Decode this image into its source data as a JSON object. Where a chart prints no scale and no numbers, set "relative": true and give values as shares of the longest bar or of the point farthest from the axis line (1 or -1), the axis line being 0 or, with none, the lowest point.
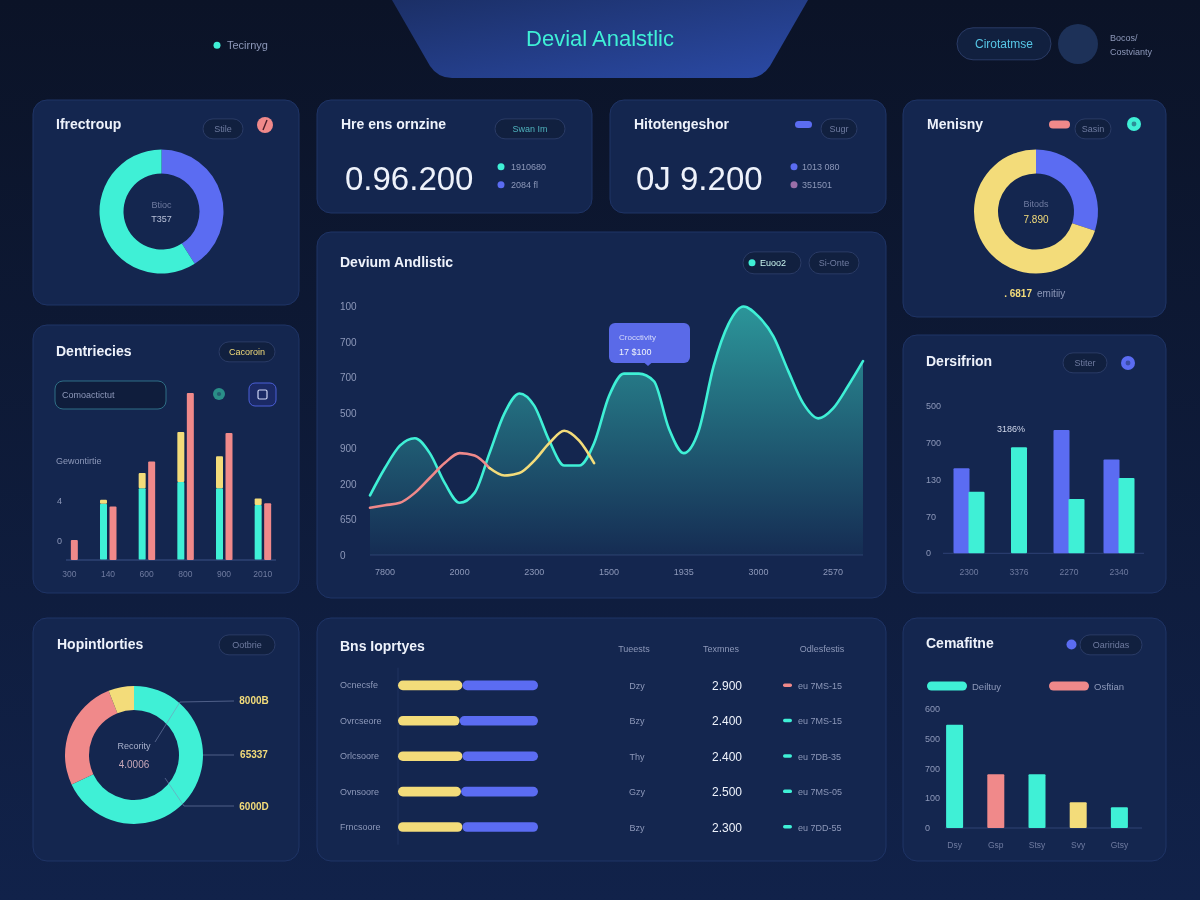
{
  "chart_data": [
    {
      "type": "other",
      "title": "Devial Analstlic",
      "annotations": [
        "Tecirnyg",
        "Cirotatmse",
        "Bocos/",
        "Costvianty"
      ]
    },
    {
      "type": "donut",
      "title": "Ifrectroup",
      "categories": [
        null,
        null
      ],
      "values": [
        41,
        59
      ],
      "colors": [
        "#5b6cf2",
        "#3ff0d6"
      ],
      "annotations": [
        "Stile",
        "Btioc",
        "T357"
      ]
    },
    {
      "type": "other",
      "title": "Hre ens ornzine",
      "annotations": [
        "Swan Im",
        "0.96.200",
        "1910680",
        "2084 fl"
      ]
    },
    {
      "type": "other",
      "title": "Hitotengeshor",
      "annotations": [
        "Sugr",
        "0J 9.200",
        "1013 080",
        "351501"
      ]
    },
    {
      "type": "donut",
      "title": "Menisny",
      "categories": [
        null,
        null
      ],
      "values": [
        30,
        70
      ],
      "colors": [
        "#5b6cf2",
        "#f3dc7a"
      ],
      "annotations": [
        "Sasin",
        "Bitods",
        "7.890",
        ". 6817",
        "emitiiy"
      ]
    },
    {
      "type": "bar",
      "title": "Dentriecies",
      "categories": [
        "300",
        "140",
        "600",
        "800",
        "900",
        "2010"
      ],
      "relative": true,
      "stacked": true,
      "series": [
        {
          "color": "#3ff0d6",
          "values": [
            null,
            0.44,
            0.56,
            0.61,
            0.56,
            0.43
          ]
        },
        {
          "color": "#f3dc7a",
          "values": [
            null,
            0.03,
            0.12,
            0.39,
            0.25,
            0.05
          ]
        }
      ],
      "annotations": [
        "Cacoroin",
        "Comoactictut",
        "Gewontirtie",
        "4",
        "0"
      ]
    },
    {
      "type": "line",
      "title": "Devium Andlistic",
      "relative": true,
      "categories": [
        null,
        "7800",
        null,
        null,
        null,
        null,
        "2000",
        null,
        null,
        null,
        null,
        "2300",
        null,
        null,
        null,
        null,
        "1500",
        null,
        null,
        null,
        null,
        "1935",
        null,
        null,
        null,
        null,
        "3000",
        null,
        null,
        null,
        null,
        "2570",
        null,
        null
      ],
      "series": [
        {
          "type": "area",
          "color": "#3ff0d6",
          "values": [
            0.24,
            0.35,
            0.44,
            0.47,
            0.41,
            0.29,
            0.21,
            0.25,
            0.41,
            0.57,
            0.65,
            0.6,
            0.46,
            0.36,
            0.36,
            0.45,
            0.64,
            0.73,
            0.73,
            0.7,
            0.51,
            0.41,
            0.5,
            0.76,
            0.93,
            1,
            0.96,
            0.88,
            0.74,
            0.61,
            0.55,
            0.59,
            0.68,
            0.78
          ]
        },
        {
          "type": "line",
          "color": "#f0898a",
          "values": [
            0.19,
            0.2,
            0.21,
            0.25,
            0.31,
            0.37,
            0.41,
            0.4,
            0.35,
            null,
            null,
            null,
            null,
            null,
            null,
            null,
            null,
            null,
            null,
            null,
            null,
            null,
            null,
            null,
            null,
            null,
            null,
            null,
            null,
            null,
            null,
            null,
            null,
            null
          ]
        },
        {
          "type": "line",
          "color": "#f3dc7a",
          "values": [
            null,
            null,
            null,
            null,
            null,
            null,
            null,
            null,
            0.35,
            0.32,
            0.33,
            0.38,
            0.45,
            0.5,
            0.46,
            0.37,
            null,
            null,
            null,
            null,
            null,
            null,
            null,
            null,
            null,
            null,
            null,
            null,
            null,
            null,
            null,
            null,
            null,
            null
          ]
        }
      ],
      "annotations": [
        "Euoo2",
        "Si-Onte",
        "Crocctivity",
        "17 $100",
        "100",
        "700",
        "700",
        "500",
        "900",
        "200",
        "650",
        "0"
      ]
    },
    {
      "type": "bar",
      "title": "Dersifrion",
      "categories": [
        "2300",
        "3376",
        "2270",
        "2340"
      ],
      "relative": true,
      "series": [
        {
          "color": "#5b6cf2",
          "values": [
            0.69,
            null,
            1,
            0.76
          ]
        },
        {
          "color": "#3ff0d6",
          "values": [
            0.5,
            0.86,
            0.44,
            0.61
          ]
        }
      ],
      "annotations": [
        "Stiter",
        "3186%",
        "500",
        "700",
        "130",
        "70",
        "0"
      ]
    },
    {
      "type": "donut",
      "title": "Hopintlorties",
      "categories": [
        null,
        null,
        null
      ],
      "values": [
        68,
        26,
        6
      ],
      "colors": [
        "#3ff0d6",
        "#f0898a",
        "#f3dc7a"
      ],
      "annotations": [
        "Ootbrie",
        "Recority",
        "4.0006",
        "8000B",
        "65337",
        "6000D"
      ]
    },
    {
      "type": "bar",
      "title": "Bns Ioprtyes",
      "orientation": "horizontal",
      "stacked": true,
      "relative": true,
      "categories": [
        "Ocnecsfe",
        "Ovrcseore",
        "Orlcsoore",
        "Ovnsoore",
        "Frncsoore"
      ],
      "series": [
        {
          "color": "#f3dc7a",
          "values": [
            0.46,
            0.44,
            0.46,
            0.45,
            0.46
          ]
        },
        {
          "color": "#5b6cf2",
          "values": [
            0.54,
            0.56,
            0.54,
            0.55,
            0.54
          ]
        }
      ],
      "annotations": [
        "Tueests",
        "Texmnes",
        "Odlesfestis",
        "Dzy",
        "2.900",
        "eu 7MS-15",
        "Bzy",
        "2.400",
        "eu 7MS-15",
        "Thy",
        "2.400",
        "eu 7DB-35",
        "Gzy",
        "2.500",
        "eu 7MS-05",
        "Bzy",
        "2.300",
        "eu 7DD-55"
      ]
    },
    {
      "type": "bar",
      "title": "Cemafitne",
      "categories": [
        "Dsy",
        "Gsp",
        "Stsy",
        "Svy",
        "Gtsy"
      ],
      "relative": true,
      "legend": "top",
      "series": [
        {
          "name": "Deiltuy",
          "color": "#3ff0d6",
          "values": [
            1,
            null,
            0.52,
            null,
            0.2
          ]
        },
        {
          "name": "Osftian",
          "color": "#f0898a",
          "values": [
            null,
            0.52,
            null,
            null,
            null
          ]
        },
        {
          "color": "#f3dc7a",
          "values": [
            null,
            null,
            null,
            0.25,
            null
          ]
        }
      ],
      "annotations": [
        "Oariridas",
        "600",
        "500",
        "700",
        "100",
        "0"
      ]
    },
    {
      "type": "bar",
      "categories": [
        "300",
        "140",
        "600",
        "800",
        "900",
        "2010"
      ],
      "tick_labels": false,
      "relative": true,
      "series": [
        {
          "color": "#f0898a",
          "values": [
            0.12,
            0.32,
            0.59,
            1,
            0.76,
            0.34
          ]
        }
      ]
    }
  ]
}
